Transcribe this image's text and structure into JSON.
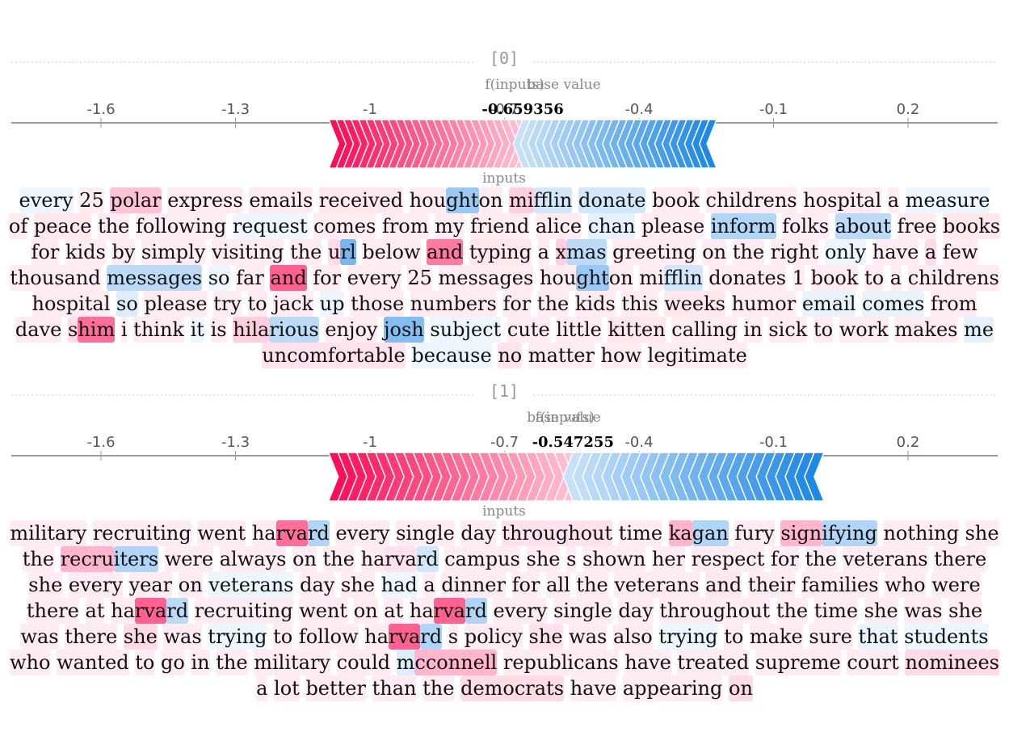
{
  "chart_data": [
    {
      "type": "force",
      "title": "[0]",
      "base_label": "base value",
      "fx_label": "f(inputs)",
      "fx_value": -0.659356,
      "fx_text": "-0.659356",
      "base_value": -0.6,
      "xlim": [
        -1.8,
        0.4
      ],
      "ticks": [
        -1.6,
        -1.3,
        -1,
        -0.7,
        -0.4,
        -0.1,
        0.2
      ],
      "tick_labels": [
        "-1.6",
        "-1.3",
        "-1",
        "-0.7",
        "-0.4",
        "-0.1",
        "0.2"
      ],
      "neg_end": -0.76,
      "pos_end": -0.63,
      "inputs_label": "inputs",
      "colors": {
        "pos": "#ff0d57",
        "neg": "#1e88e5"
      },
      "tokens": [
        {
          "t": "every",
          "w": -0.05
        },
        {
          "t": "25",
          "w": 0.08
        },
        {
          "t": "polar",
          "w": 0.25
        },
        {
          "t": "express",
          "w": 0.05
        },
        {
          "t": "emails",
          "w": 0.03
        },
        {
          "t": "received",
          "w": 0.1
        },
        {
          "t": "hou",
          "w": 0.04
        },
        {
          "t": "ght",
          "w": -0.45
        },
        {
          "t": "on",
          "w": 0.02
        },
        {
          "t": "mi",
          "w": 0.2
        },
        {
          "t": "fflin",
          "w": -0.2
        },
        {
          "t": "donate",
          "w": -0.2
        },
        {
          "t": "book",
          "w": 0.08
        },
        {
          "t": "childrens",
          "w": 0.03
        },
        {
          "t": "hospital",
          "w": 0.02
        },
        {
          "t": "a",
          "w": 0.02
        },
        {
          "t": "measure",
          "w": -0.04
        },
        {
          "t": "of",
          "w": 0.04
        },
        {
          "t": "peace",
          "w": 0.1
        },
        {
          "t": "the",
          "w": 0.03
        },
        {
          "t": "following",
          "w": 0.03
        },
        {
          "t": "request",
          "w": -0.08
        },
        {
          "t": "comes",
          "w": 0.03
        },
        {
          "t": "from",
          "w": 0.02
        },
        {
          "t": "my",
          "w": 0.02
        },
        {
          "t": "friend",
          "w": 0.02
        },
        {
          "t": "alice",
          "w": 0.03
        },
        {
          "t": "chan",
          "w": -0.12
        },
        {
          "t": "please",
          "w": 0.03
        },
        {
          "t": "inform",
          "w": -0.35
        },
        {
          "t": "folks",
          "w": 0.03
        },
        {
          "t": "about",
          "w": -0.3
        },
        {
          "t": "free",
          "w": 0.03
        },
        {
          "t": "books",
          "w": 0.1
        },
        {
          "t": "for",
          "w": 0.03
        },
        {
          "t": "kids",
          "w": 0.02
        },
        {
          "t": "by",
          "w": 0.02
        },
        {
          "t": "simply",
          "w": 0.03
        },
        {
          "t": "visiting",
          "w": 0.03
        },
        {
          "t": "the",
          "w": 0.04
        },
        {
          "t": "u",
          "w": 0.15
        },
        {
          "t": "rl",
          "w": -0.6
        },
        {
          "t": "below",
          "w": 0.03
        },
        {
          "t": "and",
          "w": 0.55
        },
        {
          "t": "typing",
          "w": 0.1
        },
        {
          "t": "a",
          "w": 0.03
        },
        {
          "t": "x",
          "w": 0.2
        },
        {
          "t": "mas",
          "w": -0.3
        },
        {
          "t": "greeting",
          "w": 0.03
        },
        {
          "t": "on",
          "w": 0.02
        },
        {
          "t": "the",
          "w": 0.02
        },
        {
          "t": "right",
          "w": 0.02
        },
        {
          "t": "only",
          "w": -0.05
        },
        {
          "t": "have",
          "w": 0.03
        },
        {
          "t": "a",
          "w": 0.15
        },
        {
          "t": "few",
          "w": 0.03
        },
        {
          "t": "thousand",
          "w": 0.03
        },
        {
          "t": "messages",
          "w": -0.3
        },
        {
          "t": "so",
          "w": -0.04
        },
        {
          "t": "far",
          "w": 0.03
        },
        {
          "t": "and",
          "w": 0.65
        },
        {
          "t": "for",
          "w": 0.03
        },
        {
          "t": "every",
          "w": 0.02
        },
        {
          "t": "25",
          "w": 0.02
        },
        {
          "t": "messages",
          "w": 0.02
        },
        {
          "t": "hou",
          "w": 0.03
        },
        {
          "t": "ght",
          "w": -0.45
        },
        {
          "t": "on",
          "w": 0.02
        },
        {
          "t": "mi",
          "w": 0.03
        },
        {
          "t": "fflin",
          "w": -0.2
        },
        {
          "t": "donates",
          "w": 0.03
        },
        {
          "t": "1",
          "w": 0.02
        },
        {
          "t": "book",
          "w": 0.02
        },
        {
          "t": "to",
          "w": 0.02
        },
        {
          "t": "a",
          "w": 0.02
        },
        {
          "t": "childrens",
          "w": 0.02
        },
        {
          "t": "hospital",
          "w": 0.02
        },
        {
          "t": "so",
          "w": -0.15
        },
        {
          "t": "please",
          "w": 0.03
        },
        {
          "t": "try",
          "w": 0.08
        },
        {
          "t": "to",
          "w": 0.02
        },
        {
          "t": "jack",
          "w": 0.02
        },
        {
          "t": "up",
          "w": -0.08
        },
        {
          "t": "those",
          "w": 0.03
        },
        {
          "t": "numbers",
          "w": 0.03
        },
        {
          "t": "for",
          "w": 0.02
        },
        {
          "t": "the",
          "w": 0.02
        },
        {
          "t": "kids",
          "w": 0.02
        },
        {
          "t": "this",
          "w": 0.02
        },
        {
          "t": "weeks",
          "w": 0.1
        },
        {
          "t": "humor",
          "w": 0.04
        },
        {
          "t": "email",
          "w": -0.1
        },
        {
          "t": "comes",
          "w": -0.1
        },
        {
          "t": "from",
          "w": 0.02
        },
        {
          "t": "dave",
          "w": 0.03
        },
        {
          "t": "s",
          "w": 0.15
        },
        {
          "t": "him",
          "w": 0.6
        },
        {
          "t": "i",
          "w": 0.02
        },
        {
          "t": "think",
          "w": 0.02
        },
        {
          "t": "it",
          "w": -0.05
        },
        {
          "t": "is",
          "w": 0.02
        },
        {
          "t": "hila",
          "w": 0.2
        },
        {
          "t": "rious",
          "w": -0.3
        },
        {
          "t": "enjoy",
          "w": 0.03
        },
        {
          "t": "josh",
          "w": -0.55
        },
        {
          "t": "subject",
          "w": -0.05
        },
        {
          "t": "cute",
          "w": 0.03
        },
        {
          "t": "little",
          "w": 0.03
        },
        {
          "t": "kitten",
          "w": 0.1
        },
        {
          "t": "calling",
          "w": 0.02
        },
        {
          "t": "in",
          "w": 0.02
        },
        {
          "t": "sick",
          "w": 0.02
        },
        {
          "t": "to",
          "w": 0.02
        },
        {
          "t": "work",
          "w": 0.02
        },
        {
          "t": "makes",
          "w": 0.02
        },
        {
          "t": "me",
          "w": -0.12
        },
        {
          "t": "uncomfortable",
          "w": 0.12
        },
        {
          "t": "because",
          "w": -0.08
        },
        {
          "t": "no",
          "w": 0.12
        },
        {
          "t": "matter",
          "w": 0.03
        },
        {
          "t": "how",
          "w": 0.02
        },
        {
          "t": "legitimate",
          "w": 0.03
        }
      ]
    },
    {
      "type": "force",
      "title": "[1]",
      "base_label": "base value",
      "fx_label": "f(inputs)",
      "fx_value": -0.547255,
      "fx_text": "-0.547255",
      "base_value": -0.6,
      "xlim": [
        -1.8,
        0.4
      ],
      "ticks": [
        -1.6,
        -1.3,
        -1,
        -0.7,
        -0.4,
        -0.1,
        0.2
      ],
      "tick_labels": [
        "-1.6",
        "-1.3",
        "-1",
        "-0.7",
        "-0.4",
        "-0.1",
        "0.2"
      ],
      "neg_end": -0.42,
      "pos_end": -0.66,
      "inputs_label": "inputs",
      "colors": {
        "pos": "#ff0d57",
        "neg": "#1e88e5"
      },
      "tokens": [
        {
          "t": "military",
          "w": 0.08
        },
        {
          "t": "recruiting",
          "w": 0.02
        },
        {
          "t": "went",
          "w": 0.03
        },
        {
          "t": "ha",
          "w": 0.04
        },
        {
          "t": "rva",
          "w": 0.6
        },
        {
          "t": "rd",
          "w": -0.35
        },
        {
          "t": "every",
          "w": 0.02
        },
        {
          "t": "single",
          "w": 0.02
        },
        {
          "t": "day",
          "w": 0.02
        },
        {
          "t": "throughout",
          "w": 0.12
        },
        {
          "t": "time",
          "w": 0.02
        },
        {
          "t": "ka",
          "w": 0.3
        },
        {
          "t": "gan",
          "w": -0.35
        },
        {
          "t": "fury",
          "w": 0.02
        },
        {
          "t": "sign",
          "w": 0.3
        },
        {
          "t": "ifying",
          "w": -0.35
        },
        {
          "t": "nothing",
          "w": 0.02
        },
        {
          "t": "she",
          "w": 0.02
        },
        {
          "t": "the",
          "w": 0.08
        },
        {
          "t": "recru",
          "w": 0.3
        },
        {
          "t": "iters",
          "w": -0.35
        },
        {
          "t": "were",
          "w": 0.02
        },
        {
          "t": "always",
          "w": 0.02
        },
        {
          "t": "on",
          "w": 0.02
        },
        {
          "t": "the",
          "w": 0.02
        },
        {
          "t": "ha",
          "w": 0.03
        },
        {
          "t": "rva",
          "w": 0.12
        },
        {
          "t": "rd",
          "w": -0.2
        },
        {
          "t": "campus",
          "w": 0.02
        },
        {
          "t": "she",
          "w": 0.02
        },
        {
          "t": "s",
          "w": 0.02
        },
        {
          "t": "shown",
          "w": 0.02
        },
        {
          "t": "her",
          "w": 0.02
        },
        {
          "t": "respect",
          "w": 0.02
        },
        {
          "t": "for",
          "w": 0.02
        },
        {
          "t": "the",
          "w": 0.02
        },
        {
          "t": "veterans",
          "w": 0.02
        },
        {
          "t": "there",
          "w": 0.02
        },
        {
          "t": "she",
          "w": 0.02
        },
        {
          "t": "every",
          "w": 0.02
        },
        {
          "t": "year",
          "w": 0.02
        },
        {
          "t": "on",
          "w": 0.02
        },
        {
          "t": "veterans",
          "w": -0.08
        },
        {
          "t": "day",
          "w": 0.02
        },
        {
          "t": "she",
          "w": 0.02
        },
        {
          "t": "had",
          "w": -0.05
        },
        {
          "t": "a",
          "w": 0.02
        },
        {
          "t": "dinner",
          "w": 0.02
        },
        {
          "t": "for",
          "w": 0.02
        },
        {
          "t": "all",
          "w": 0.02
        },
        {
          "t": "the",
          "w": 0.02
        },
        {
          "t": "veterans",
          "w": 0.02
        },
        {
          "t": "and",
          "w": 0.1
        },
        {
          "t": "their",
          "w": 0.02
        },
        {
          "t": "families",
          "w": 0.02
        },
        {
          "t": "who",
          "w": 0.02
        },
        {
          "t": "were",
          "w": 0.02
        },
        {
          "t": "there",
          "w": 0.02
        },
        {
          "t": "at",
          "w": 0.02
        },
        {
          "t": "ha",
          "w": 0.03
        },
        {
          "t": "rva",
          "w": 0.65
        },
        {
          "t": "rd",
          "w": -0.3
        },
        {
          "t": "recruiting",
          "w": 0.02
        },
        {
          "t": "went",
          "w": 0.02
        },
        {
          "t": "on",
          "w": 0.02
        },
        {
          "t": "at",
          "w": 0.02
        },
        {
          "t": "ha",
          "w": 0.04
        },
        {
          "t": "rva",
          "w": 0.65
        },
        {
          "t": "rd",
          "w": -0.35
        },
        {
          "t": "every",
          "w": 0.02
        },
        {
          "t": "single",
          "w": 0.02
        },
        {
          "t": "day",
          "w": 0.02
        },
        {
          "t": "throughout",
          "w": 0.02
        },
        {
          "t": "the",
          "w": 0.02
        },
        {
          "t": "time",
          "w": 0.02
        },
        {
          "t": "she",
          "w": 0.02
        },
        {
          "t": "was",
          "w": 0.02
        },
        {
          "t": "she",
          "w": 0.08
        },
        {
          "t": "was",
          "w": 0.02
        },
        {
          "t": "there",
          "w": 0.02
        },
        {
          "t": "she",
          "w": 0.15
        },
        {
          "t": "was",
          "w": 0.02
        },
        {
          "t": "trying",
          "w": -0.08
        },
        {
          "t": "to",
          "w": 0.02
        },
        {
          "t": "follow",
          "w": 0.02
        },
        {
          "t": "ha",
          "w": 0.03
        },
        {
          "t": "rva",
          "w": 0.65
        },
        {
          "t": "rd",
          "w": -0.35
        },
        {
          "t": "s",
          "w": 0.02
        },
        {
          "t": "policy",
          "w": 0.02
        },
        {
          "t": "she",
          "w": 0.12
        },
        {
          "t": "was",
          "w": 0.02
        },
        {
          "t": "also",
          "w": 0.02
        },
        {
          "t": "trying",
          "w": -0.08
        },
        {
          "t": "to",
          "w": 0.02
        },
        {
          "t": "make",
          "w": 0.02
        },
        {
          "t": "sure",
          "w": 0.02
        },
        {
          "t": "that",
          "w": -0.1
        },
        {
          "t": "students",
          "w": -0.08
        },
        {
          "t": "who",
          "w": 0.02
        },
        {
          "t": "wanted",
          "w": 0.02
        },
        {
          "t": "to",
          "w": 0.02
        },
        {
          "t": "go",
          "w": 0.02
        },
        {
          "t": "in",
          "w": 0.02
        },
        {
          "t": "the",
          "w": 0.02
        },
        {
          "t": "military",
          "w": 0.02
        },
        {
          "t": "could",
          "w": 0.02
        },
        {
          "t": "m",
          "w": -0.15
        },
        {
          "t": "cconnell",
          "w": 0.3
        },
        {
          "t": "republicans",
          "w": 0.02
        },
        {
          "t": "have",
          "w": 0.02
        },
        {
          "t": "treated",
          "w": 0.02
        },
        {
          "t": "supreme",
          "w": 0.08
        },
        {
          "t": "court",
          "w": 0.02
        },
        {
          "t": "nominees",
          "w": 0.15
        },
        {
          "t": "a",
          "w": 0.02
        },
        {
          "t": "lot",
          "w": 0.02
        },
        {
          "t": "better",
          "w": 0.08
        },
        {
          "t": "than",
          "w": 0.02
        },
        {
          "t": "the",
          "w": 0.02
        },
        {
          "t": "democrats",
          "w": 0.15
        },
        {
          "t": "have",
          "w": 0.02
        },
        {
          "t": "appearing",
          "w": 0.02
        },
        {
          "t": "on",
          "w": 0.15
        }
      ]
    }
  ]
}
